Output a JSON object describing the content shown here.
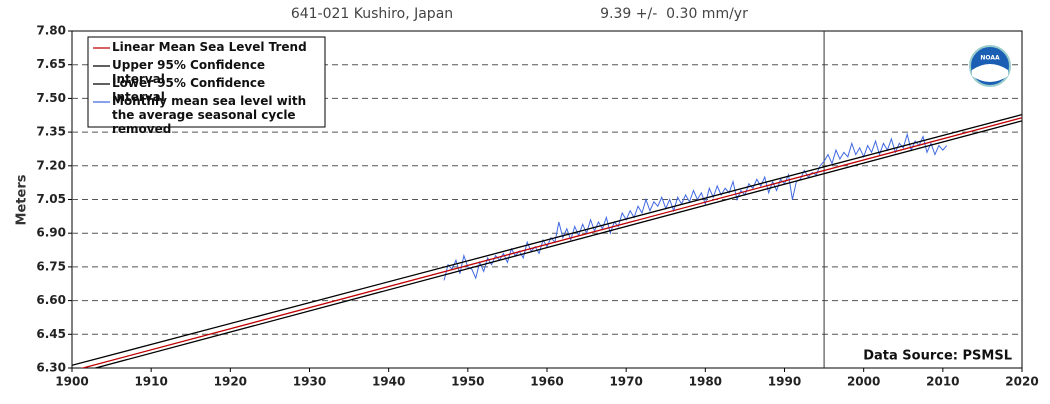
{
  "chart_data": {
    "type": "line",
    "title": "641-021 Kushiro, Japan",
    "subtitle": "9.39 +/-  0.30 mm/yr",
    "y_label": "Meters",
    "annotation": "Data Source: PSMSL",
    "logo_text": "NOAA",
    "xlim": [
      1900,
      2020
    ],
    "xticks": [
      1900,
      1910,
      1920,
      1930,
      1940,
      1950,
      1960,
      1970,
      1980,
      1990,
      2000,
      2010,
      2020
    ],
    "ylim": [
      6.3,
      7.8
    ],
    "yticks": [
      {
        "value": 7.8,
        "label": "7.80"
      },
      7.65,
      {
        "value": 7.5,
        "label": "7.50"
      },
      7.35,
      {
        "value": 7.2,
        "label": "7.20"
      },
      7.05,
      {
        "value": 6.9,
        "label": "6.90"
      },
      6.75,
      {
        "value": 6.6,
        "label": "6.60"
      },
      6.45,
      {
        "value": 6.3,
        "label": "6.30"
      }
    ],
    "grid": true,
    "legend": "upper left",
    "vline_x": 1995,
    "series": [
      {
        "name": "Linear Mean Sea Level Trend",
        "color": "#c00000",
        "x": [
          1900,
          2020
        ],
        "values": [
          6.287,
          7.414
        ]
      },
      {
        "name": "Upper 95% Confidence Interval",
        "color": "#000000",
        "x": [
          1900,
          2020
        ],
        "values": [
          6.312,
          7.428
        ]
      },
      {
        "name": "Lower 95% Confidence Interval",
        "color": "#000000",
        "x": [
          1900,
          2020
        ],
        "values": [
          6.272,
          7.4
        ]
      },
      {
        "name": "Monthly mean sea level with the average seasonal cycle removed",
        "color": "#4169e1",
        "x": [
          1947.0,
          1947.5,
          1948.0,
          1948.5,
          1949.0,
          1949.5,
          1950.0,
          1950.5,
          1951.0,
          1951.5,
          1952.0,
          1952.5,
          1953.0,
          1953.5,
          1954.0,
          1954.5,
          1955.0,
          1955.5,
          1956.0,
          1956.5,
          1957.0,
          1957.5,
          1958.0,
          1958.5,
          1959.0,
          1959.5,
          1960.0,
          1960.5,
          1961.0,
          1961.5,
          1962.0,
          1962.5,
          1963.0,
          1963.5,
          1964.0,
          1964.5,
          1965.0,
          1965.5,
          1966.0,
          1966.5,
          1967.0,
          1967.5,
          1968.0,
          1968.5,
          1969.0,
          1969.5,
          1970.0,
          1970.5,
          1971.0,
          1971.5,
          1972.0,
          1972.5,
          1973.0,
          1973.5,
          1974.0,
          1974.5,
          1975.0,
          1975.5,
          1976.0,
          1976.5,
          1977.0,
          1977.5,
          1978.0,
          1978.5,
          1979.0,
          1979.5,
          1980.0,
          1980.5,
          1981.0,
          1981.5,
          1982.0,
          1982.5,
          1983.0,
          1983.5,
          1984.0,
          1984.5,
          1985.0,
          1985.5,
          1986.0,
          1986.5,
          1987.0,
          1987.5,
          1988.0,
          1988.5,
          1989.0,
          1989.5,
          1990.0,
          1990.5,
          1991.0,
          1991.5,
          1992.0,
          1992.5,
          1993.0,
          1993.5,
          1994.0,
          1994.5,
          1995.0,
          1995.5,
          1996.0,
          1996.5,
          1997.0,
          1997.5,
          1998.0,
          1998.5,
          1999.0,
          1999.5,
          2000.0,
          2000.5,
          2001.0,
          2001.5,
          2002.0,
          2002.5,
          2003.0,
          2003.5,
          2004.0,
          2004.5,
          2005.0,
          2005.5,
          2006.0,
          2006.5,
          2007.0,
          2007.5,
          2008.0,
          2008.5,
          2009.0,
          2009.5,
          2010.0,
          2010.5
        ],
        "values": [
          6.69,
          6.76,
          6.74,
          6.78,
          6.72,
          6.8,
          6.75,
          6.74,
          6.7,
          6.77,
          6.73,
          6.79,
          6.76,
          6.8,
          6.78,
          6.81,
          6.77,
          6.83,
          6.8,
          6.82,
          6.79,
          6.86,
          6.82,
          6.84,
          6.81,
          6.87,
          6.84,
          6.88,
          6.86,
          6.95,
          6.88,
          6.92,
          6.87,
          6.93,
          6.89,
          6.94,
          6.9,
          6.96,
          6.91,
          6.95,
          6.92,
          6.97,
          6.9,
          6.95,
          6.93,
          6.99,
          6.96,
          7.0,
          6.97,
          7.02,
          6.99,
          7.05,
          7.0,
          7.04,
          7.02,
          7.06,
          7.01,
          7.05,
          7.0,
          7.06,
          7.03,
          7.07,
          7.04,
          7.09,
          7.05,
          7.08,
          7.03,
          7.1,
          7.06,
          7.11,
          7.07,
          7.1,
          7.08,
          7.13,
          7.05,
          7.09,
          7.07,
          7.12,
          7.1,
          7.14,
          7.11,
          7.15,
          7.08,
          7.13,
          7.09,
          7.14,
          7.12,
          7.16,
          7.05,
          7.13,
          7.14,
          7.18,
          7.15,
          7.17,
          7.16,
          7.2,
          7.22,
          7.25,
          7.21,
          7.27,
          7.23,
          7.26,
          7.24,
          7.3,
          7.25,
          7.28,
          7.24,
          7.29,
          7.26,
          7.31,
          7.25,
          7.3,
          7.27,
          7.32,
          7.26,
          7.3,
          7.28,
          7.34,
          7.27,
          7.31,
          7.29,
          7.33,
          7.26,
          7.3,
          7.25,
          7.29,
          7.27,
          7.29
        ]
      }
    ]
  }
}
